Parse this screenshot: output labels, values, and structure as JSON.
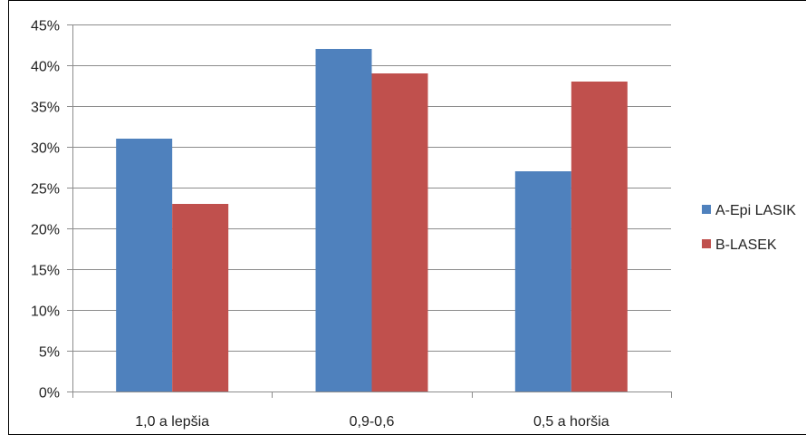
{
  "chart_data": {
    "type": "bar",
    "categories": [
      "1,0 a lepšia",
      "0,9-0,6",
      "0,5 a horšia"
    ],
    "series": [
      {
        "name": "A-Epi LASIK",
        "values": [
          31,
          42,
          27
        ],
        "color": "#4f81bd"
      },
      {
        "name": "B-LASEK",
        "values": [
          23,
          39,
          38
        ],
        "color": "#c0504d"
      }
    ],
    "ylim": [
      0,
      45
    ],
    "ytick_step": 5,
    "ytick_labels": [
      "0%",
      "5%",
      "10%",
      "15%",
      "20%",
      "25%",
      "30%",
      "35%",
      "40%",
      "45%"
    ],
    "grid": true,
    "legend": "right",
    "title": "",
    "xlabel": "",
    "ylabel": ""
  }
}
